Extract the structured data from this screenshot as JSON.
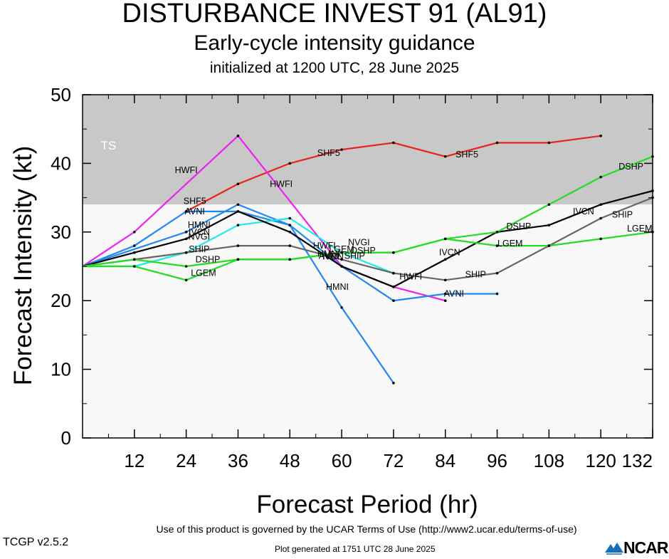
{
  "chart_data": {
    "type": "line",
    "title": "DISTURBANCE INVEST 91 (AL91)",
    "subtitle": "Early-cycle intensity guidance",
    "initialized": "initialized at 1200 UTC, 28 June 2025",
    "xlabel": "Forecast Period (hr)",
    "ylabel": "Forecast Intensity (kt)",
    "xlim": [
      0,
      132
    ],
    "ylim": [
      0,
      50
    ],
    "xticks": [
      "12",
      "24",
      "36",
      "48",
      "60",
      "72",
      "84",
      "96",
      "108",
      "120",
      "132"
    ],
    "yticks": [
      "0",
      "10",
      "20",
      "30",
      "40",
      "50"
    ],
    "grid": false,
    "bands": [
      {
        "label": "TS",
        "y_from": 34,
        "y_to": 50,
        "color": "#c8c8c8"
      },
      {
        "label": "",
        "y_from": 0,
        "y_to": 34,
        "color": "#f8f8f8"
      }
    ],
    "series": [
      {
        "name": "SHF5",
        "color": "#e8241e",
        "x": [
          24,
          36,
          48,
          60,
          72,
          84,
          96,
          108,
          120
        ],
        "y": [
          33,
          37,
          40,
          42,
          43,
          41,
          43,
          43,
          44
        ]
      },
      {
        "name": "HWFI",
        "color": "#ee22ee",
        "x": [
          0,
          12,
          36,
          60,
          72,
          84
        ],
        "y": [
          25,
          30,
          44,
          25,
          22,
          20
        ]
      },
      {
        "name": "AVNI",
        "color": "#2288ee",
        "x": [
          0,
          12,
          24,
          36,
          48,
          60,
          72,
          84,
          96
        ],
        "y": [
          25,
          28,
          33,
          33,
          31,
          25,
          20,
          21,
          21
        ]
      },
      {
        "name": "HMNI",
        "color": "#2288ee",
        "x": [
          0,
          24,
          36,
          48,
          60,
          72
        ],
        "y": [
          25,
          30,
          34,
          31,
          19,
          8
        ]
      },
      {
        "name": "NVGI",
        "color": "#22e8e8",
        "x": [
          0,
          12,
          24,
          36,
          48,
          60,
          72
        ],
        "y": [
          25,
          25,
          27,
          31,
          32,
          27,
          24
        ]
      },
      {
        "name": "IVCN",
        "color": "#000000",
        "x": [
          0,
          12,
          24,
          36,
          48,
          60,
          72,
          84,
          96,
          108,
          120,
          132
        ],
        "y": [
          25,
          27,
          29,
          33,
          30,
          25,
          22,
          26,
          30,
          31,
          34,
          36
        ]
      },
      {
        "name": "SHIP",
        "color": "#666666",
        "x": [
          0,
          12,
          24,
          36,
          48,
          60,
          72,
          84,
          96,
          108,
          120,
          132
        ],
        "y": [
          25,
          26,
          27,
          28,
          28,
          26,
          24,
          23,
          24,
          28,
          32,
          35
        ]
      },
      {
        "name": "DSHP",
        "color": "#22dd22",
        "x": [
          0,
          12,
          24,
          36,
          48,
          60,
          72,
          84,
          96,
          108,
          120,
          132
        ],
        "y": [
          25,
          26,
          25,
          26,
          26,
          27,
          27,
          29,
          30,
          34,
          38,
          41
        ]
      },
      {
        "name": "LGEM",
        "color": "#22dd22",
        "x": [
          0,
          12,
          24,
          36,
          48,
          60,
          72,
          84,
          96,
          108,
          120,
          132
        ],
        "y": [
          25,
          25,
          23,
          26,
          26,
          27,
          27,
          29,
          28,
          28,
          29,
          30
        ]
      }
    ],
    "annotations": [
      {
        "text": "HWFI",
        "x": 24,
        "y": 39
      },
      {
        "text": "HWFI",
        "x": 46,
        "y": 37
      },
      {
        "text": "HWFI",
        "x": 76,
        "y": 23.5
      },
      {
        "text": "HWFI",
        "x": 56,
        "y": 28
      },
      {
        "text": "SHF5",
        "x": 26,
        "y": 34.5
      },
      {
        "text": "SHF5",
        "x": 57,
        "y": 41.5
      },
      {
        "text": "SHF5",
        "x": 89,
        "y": 41.3
      },
      {
        "text": "AVNI",
        "x": 26,
        "y": 33
      },
      {
        "text": "AVNI",
        "x": 86,
        "y": 21
      },
      {
        "text": "AVNI",
        "x": 57,
        "y": 26.5
      },
      {
        "text": "HMNI",
        "x": 27,
        "y": 31
      },
      {
        "text": "HMNI",
        "x": 59,
        "y": 22
      },
      {
        "text": "HMNI",
        "x": 57,
        "y": 26.8
      },
      {
        "text": "IVCN",
        "x": 27,
        "y": 30
      },
      {
        "text": "IVCN",
        "x": 85,
        "y": 27
      },
      {
        "text": "IVCN",
        "x": 116,
        "y": 33
      },
      {
        "text": "IVCN",
        "x": 58,
        "y": 26.4
      },
      {
        "text": "NVGI",
        "x": 27,
        "y": 29.3
      },
      {
        "text": "NVGI",
        "x": 64,
        "y": 28.5
      },
      {
        "text": "SHIP",
        "x": 27,
        "y": 27.5
      },
      {
        "text": "SHIP",
        "x": 63,
        "y": 26.5
      },
      {
        "text": "SHIP",
        "x": 91,
        "y": 23.8
      },
      {
        "text": "SHIP",
        "x": 125,
        "y": 32.5
      },
      {
        "text": "DSHP",
        "x": 29,
        "y": 26
      },
      {
        "text": "DSHP",
        "x": 101,
        "y": 30.8
      },
      {
        "text": "DSHP",
        "x": 127,
        "y": 39.5
      },
      {
        "text": "DSHP",
        "x": 65,
        "y": 27.3
      },
      {
        "text": "LGEM",
        "x": 28,
        "y": 24
      },
      {
        "text": "LGEM",
        "x": 99,
        "y": 28.3
      },
      {
        "text": "LGEM",
        "x": 129,
        "y": 30.5
      },
      {
        "text": "LGEM",
        "x": 60,
        "y": 27.5
      }
    ]
  },
  "footer": {
    "terms": "Use of this product is governed by the UCAR Terms of Use (http://www2.ucar.edu/terms-of-use)",
    "version": "TCGP v2.5.2",
    "generated": "Plot generated at 1751 UTC   28 June 2025",
    "logo_text": "NCAR"
  }
}
